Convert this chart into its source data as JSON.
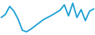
{
  "x": [
    0,
    1,
    2,
    3,
    4,
    5,
    6,
    7,
    8,
    9,
    10,
    11,
    12,
    13,
    14,
    15,
    16,
    17,
    18,
    19,
    20,
    21,
    22
  ],
  "y": [
    0.55,
    0.65,
    0.9,
    0.75,
    0.5,
    0.15,
    0.1,
    0.18,
    0.28,
    0.38,
    0.48,
    0.55,
    0.62,
    0.7,
    0.78,
    0.95,
    0.6,
    1.0,
    0.55,
    0.8,
    0.45,
    0.75,
    0.82
  ],
  "line_color": "#1a9fd4",
  "line_width": 1.3,
  "background_color": "#ffffff",
  "ylim_min": 0.0,
  "ylim_max": 1.1
}
